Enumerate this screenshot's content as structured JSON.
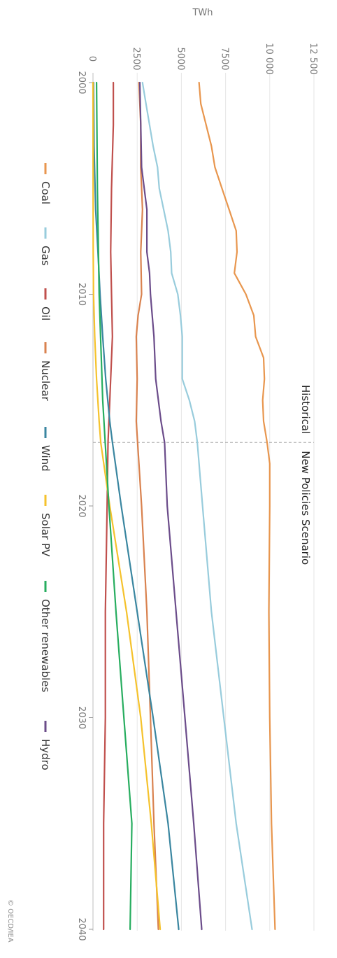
{
  "chart_data": {
    "type": "line",
    "title": "",
    "ylabel": "TWh",
    "xlabel": "",
    "x_ticks": [
      "2000",
      "2010",
      "2020",
      "2030",
      "2040"
    ],
    "y_ticks": [
      "0",
      "2500",
      "5000",
      "7500",
      "10 000",
      "12 500"
    ],
    "xlim": [
      2000,
      2040
    ],
    "ylim": [
      0,
      12500
    ],
    "grid": true,
    "legend_position": "top",
    "annotations": {
      "historical": "Historical",
      "scenario": "New Policies Scenario",
      "divider_year": 2017
    },
    "credit": "© OECD/IEA",
    "series": [
      {
        "name": "Coal",
        "color": "#e8964e",
        "points": [
          [
            2000,
            6000
          ],
          [
            2001,
            6100
          ],
          [
            2002,
            6400
          ],
          [
            2003,
            6700
          ],
          [
            2004,
            6900
          ],
          [
            2005,
            7300
          ],
          [
            2006,
            7700
          ],
          [
            2007,
            8100
          ],
          [
            2008,
            8150
          ],
          [
            2009,
            8000
          ],
          [
            2010,
            8650
          ],
          [
            2011,
            9100
          ],
          [
            2012,
            9200
          ],
          [
            2013,
            9650
          ],
          [
            2014,
            9700
          ],
          [
            2015,
            9600
          ],
          [
            2016,
            9650
          ],
          [
            2017,
            9850
          ],
          [
            2018,
            10000
          ],
          [
            2020,
            10000
          ],
          [
            2025,
            9950
          ],
          [
            2030,
            10000
          ],
          [
            2035,
            10100
          ],
          [
            2040,
            10300
          ]
        ]
      },
      {
        "name": "Gas",
        "color": "#98ccdc",
        "points": [
          [
            2000,
            2800
          ],
          [
            2001,
            3000
          ],
          [
            2002,
            3200
          ],
          [
            2003,
            3400
          ],
          [
            2004,
            3650
          ],
          [
            2005,
            3750
          ],
          [
            2006,
            4000
          ],
          [
            2007,
            4250
          ],
          [
            2008,
            4400
          ],
          [
            2009,
            4450
          ],
          [
            2010,
            4800
          ],
          [
            2011,
            4950
          ],
          [
            2012,
            5050
          ],
          [
            2013,
            5050
          ],
          [
            2014,
            5050
          ],
          [
            2015,
            5450
          ],
          [
            2016,
            5750
          ],
          [
            2017,
            5900
          ],
          [
            2020,
            6200
          ],
          [
            2025,
            6700
          ],
          [
            2030,
            7400
          ],
          [
            2035,
            8100
          ],
          [
            2040,
            9000
          ]
        ]
      },
      {
        "name": "Oil",
        "color": "#c0504d",
        "points": [
          [
            2000,
            1150
          ],
          [
            2002,
            1150
          ],
          [
            2005,
            1050
          ],
          [
            2008,
            1000
          ],
          [
            2010,
            1050
          ],
          [
            2012,
            1100
          ],
          [
            2014,
            1000
          ],
          [
            2016,
            900
          ],
          [
            2017,
            850
          ],
          [
            2020,
            800
          ],
          [
            2025,
            700
          ],
          [
            2030,
            700
          ],
          [
            2035,
            600
          ],
          [
            2040,
            600
          ]
        ]
      },
      {
        "name": "Nuclear",
        "color": "#d9824f",
        "points": [
          [
            2000,
            2600
          ],
          [
            2002,
            2700
          ],
          [
            2004,
            2700
          ],
          [
            2006,
            2800
          ],
          [
            2008,
            2700
          ],
          [
            2010,
            2750
          ],
          [
            2011,
            2550
          ],
          [
            2012,
            2450
          ],
          [
            2014,
            2500
          ],
          [
            2016,
            2450
          ],
          [
            2018,
            2600
          ],
          [
            2020,
            2750
          ],
          [
            2025,
            3050
          ],
          [
            2030,
            3250
          ],
          [
            2035,
            3450
          ],
          [
            2040,
            3700
          ]
        ]
      },
      {
        "name": "Wind",
        "color": "#3a86a0",
        "points": [
          [
            2000,
            30
          ],
          [
            2003,
            60
          ],
          [
            2006,
            150
          ],
          [
            2008,
            280
          ],
          [
            2010,
            400
          ],
          [
            2012,
            550
          ],
          [
            2014,
            720
          ],
          [
            2016,
            950
          ],
          [
            2017,
            1100
          ],
          [
            2020,
            1600
          ],
          [
            2025,
            2500
          ],
          [
            2030,
            3400
          ],
          [
            2035,
            4250
          ],
          [
            2040,
            4850
          ]
        ]
      },
      {
        "name": "Solar PV",
        "color": "#f5c22c",
        "points": [
          [
            2000,
            0
          ],
          [
            2008,
            10
          ],
          [
            2010,
            30
          ],
          [
            2012,
            100
          ],
          [
            2014,
            200
          ],
          [
            2016,
            350
          ],
          [
            2017,
            440
          ],
          [
            2020,
            950
          ],
          [
            2025,
            1900
          ],
          [
            2030,
            2700
          ],
          [
            2035,
            3300
          ],
          [
            2040,
            3800
          ]
        ]
      },
      {
        "name": "Other renewables",
        "color": "#27ad5f",
        "points": [
          [
            2000,
            200
          ],
          [
            2005,
            250
          ],
          [
            2010,
            350
          ],
          [
            2015,
            550
          ],
          [
            2020,
            900
          ],
          [
            2025,
            1300
          ],
          [
            2030,
            1750
          ],
          [
            2035,
            2200
          ],
          [
            2040,
            2100
          ]
        ]
      },
      {
        "name": "Hydro",
        "color": "#6b4c8a",
        "points": [
          [
            2000,
            2650
          ],
          [
            2002,
            2700
          ],
          [
            2004,
            2750
          ],
          [
            2006,
            3050
          ],
          [
            2008,
            3050
          ],
          [
            2009,
            3200
          ],
          [
            2010,
            3250
          ],
          [
            2012,
            3450
          ],
          [
            2014,
            3550
          ],
          [
            2016,
            3850
          ],
          [
            2017,
            4050
          ],
          [
            2020,
            4200
          ],
          [
            2025,
            4700
          ],
          [
            2030,
            5200
          ],
          [
            2035,
            5700
          ],
          [
            2040,
            6150
          ]
        ]
      }
    ]
  }
}
